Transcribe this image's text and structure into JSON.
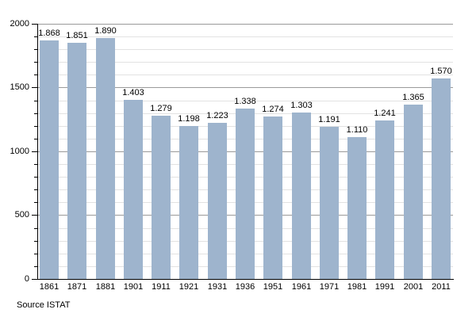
{
  "chart_data": {
    "type": "bar",
    "title": "",
    "xlabel": "",
    "ylabel": "",
    "categories": [
      "1861",
      "1871",
      "1881",
      "1901",
      "1911",
      "1921",
      "1931",
      "1936",
      "1951",
      "1961",
      "1971",
      "1981",
      "1991",
      "2001",
      "2011"
    ],
    "values": [
      1868,
      1851,
      1890,
      1403,
      1279,
      1198,
      1223,
      1338,
      1274,
      1303,
      1191,
      1110,
      1241,
      1365,
      1570
    ],
    "value_labels": [
      "1.868",
      "1.851",
      "1.890",
      "1.403",
      "1.279",
      "1.198",
      "1.223",
      "1.338",
      "1.274",
      "1.303",
      "1.191",
      "1.110",
      "1.241",
      "1.365",
      "1.570"
    ],
    "ylim": [
      0,
      2000
    ],
    "yticks": [
      0,
      500,
      1000,
      1500,
      2000
    ],
    "ytick_labels": [
      "0",
      "500",
      "1000",
      "1500",
      "2000"
    ],
    "minor_grid_step": 100,
    "major_grid_step": 500,
    "grid": "on",
    "legend": "none",
    "source_note": "Source ISTAT",
    "colors": {
      "bar_fill": "#9eb4cd",
      "major_grid": "#9a9a9a",
      "minor_grid": "#e2e2e2",
      "axis": "#000000",
      "text": "#000000"
    }
  }
}
